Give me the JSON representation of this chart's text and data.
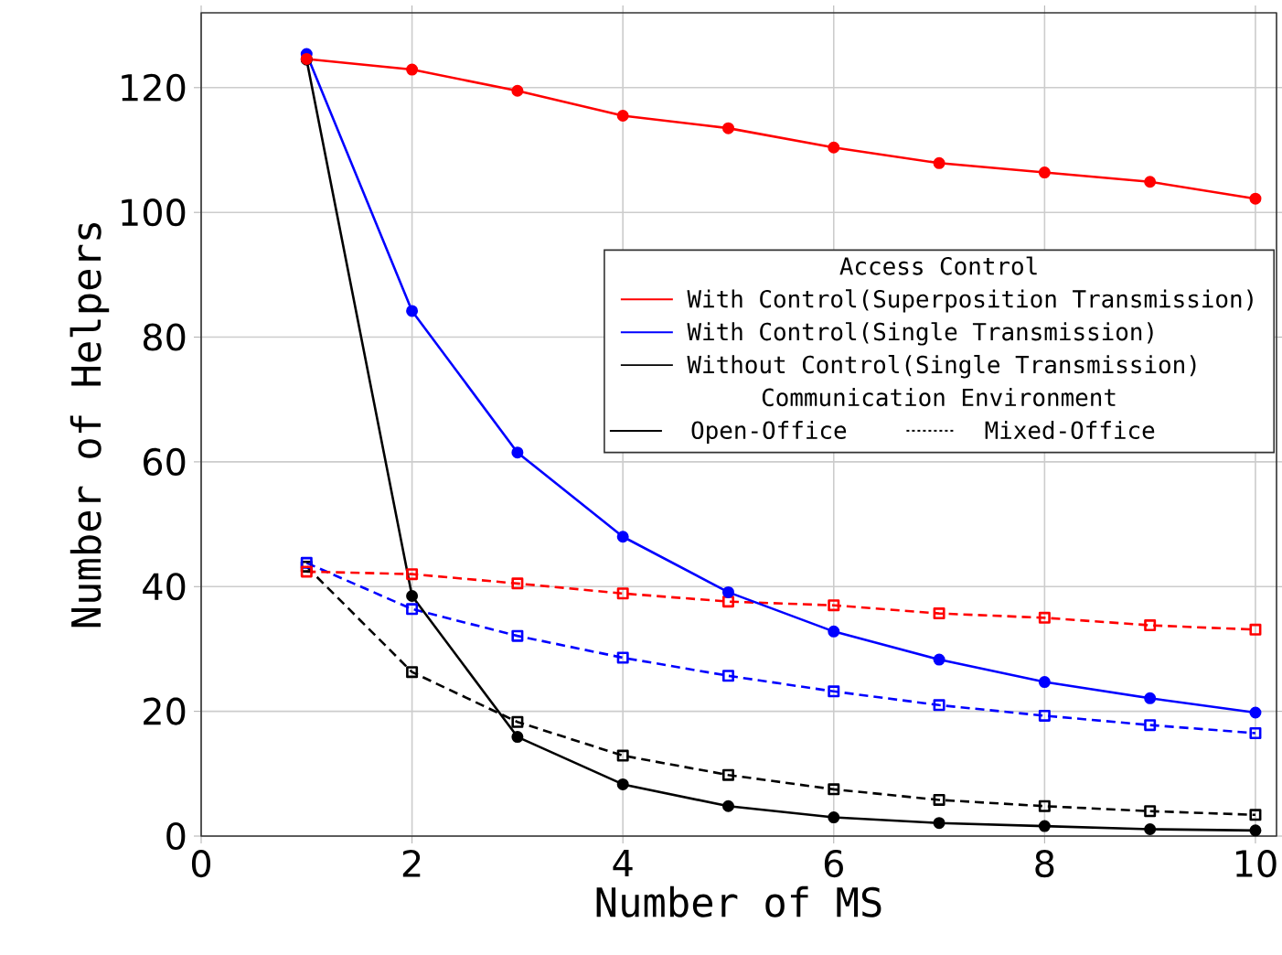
{
  "chart_data": {
    "type": "line",
    "xlabel": "Number of MS",
    "ylabel": "Number of Helpers",
    "legend_title": "Access Control",
    "annotations": [
      "Communication Environment",
      "Open-Office",
      "Mixed-Office"
    ],
    "x": [
      1,
      2,
      3,
      4,
      5,
      6,
      7,
      8,
      9,
      10
    ],
    "xlim": [
      0,
      10.2
    ],
    "xticks": [
      0,
      2,
      4,
      6,
      8,
      10
    ],
    "ylim": [
      0,
      132
    ],
    "yticks": [
      0,
      20,
      40,
      60,
      80,
      100,
      120
    ],
    "grid": true,
    "legend": "right",
    "series": [
      {
        "name": "With Control(Superposition Transmission)",
        "color": "#ff0000",
        "marker": "circle",
        "line_style": "solid",
        "values": [
          124.6,
          122.9,
          119.5,
          115.5,
          113.5,
          110.4,
          107.9,
          106.4,
          104.9,
          102.2
        ]
      },
      {
        "name": "With Control(Single Transmission)",
        "color": "#0000ff",
        "marker": "circle",
        "line_style": "solid",
        "values": [
          125.4,
          84.2,
          61.5,
          48.0,
          39.1,
          32.8,
          28.3,
          24.7,
          22.1,
          19.8
        ]
      },
      {
        "name": "Without Control(Single Transmission)",
        "color": "#000000",
        "marker": "circle",
        "line_style": "solid",
        "values": [
          124.5,
          38.5,
          15.9,
          8.3,
          4.8,
          3.0,
          2.1,
          1.6,
          1.1,
          0.9
        ]
      },
      {
        "color": "#ff0000",
        "marker": "square",
        "line_style": "dashed",
        "values": [
          42.4,
          42.0,
          40.5,
          38.9,
          37.6,
          37.0,
          35.7,
          35.0,
          33.8,
          33.1
        ]
      },
      {
        "color": "#0000ff",
        "marker": "square",
        "line_style": "dashed",
        "values": [
          43.8,
          36.4,
          32.1,
          28.6,
          25.7,
          23.2,
          21.0,
          19.3,
          17.8,
          16.5
        ]
      },
      {
        "color": "#000000",
        "marker": "square",
        "line_style": "dashed",
        "values": [
          43.2,
          26.3,
          18.3,
          12.9,
          9.8,
          7.5,
          5.8,
          4.8,
          4.0,
          3.4
        ]
      }
    ]
  }
}
